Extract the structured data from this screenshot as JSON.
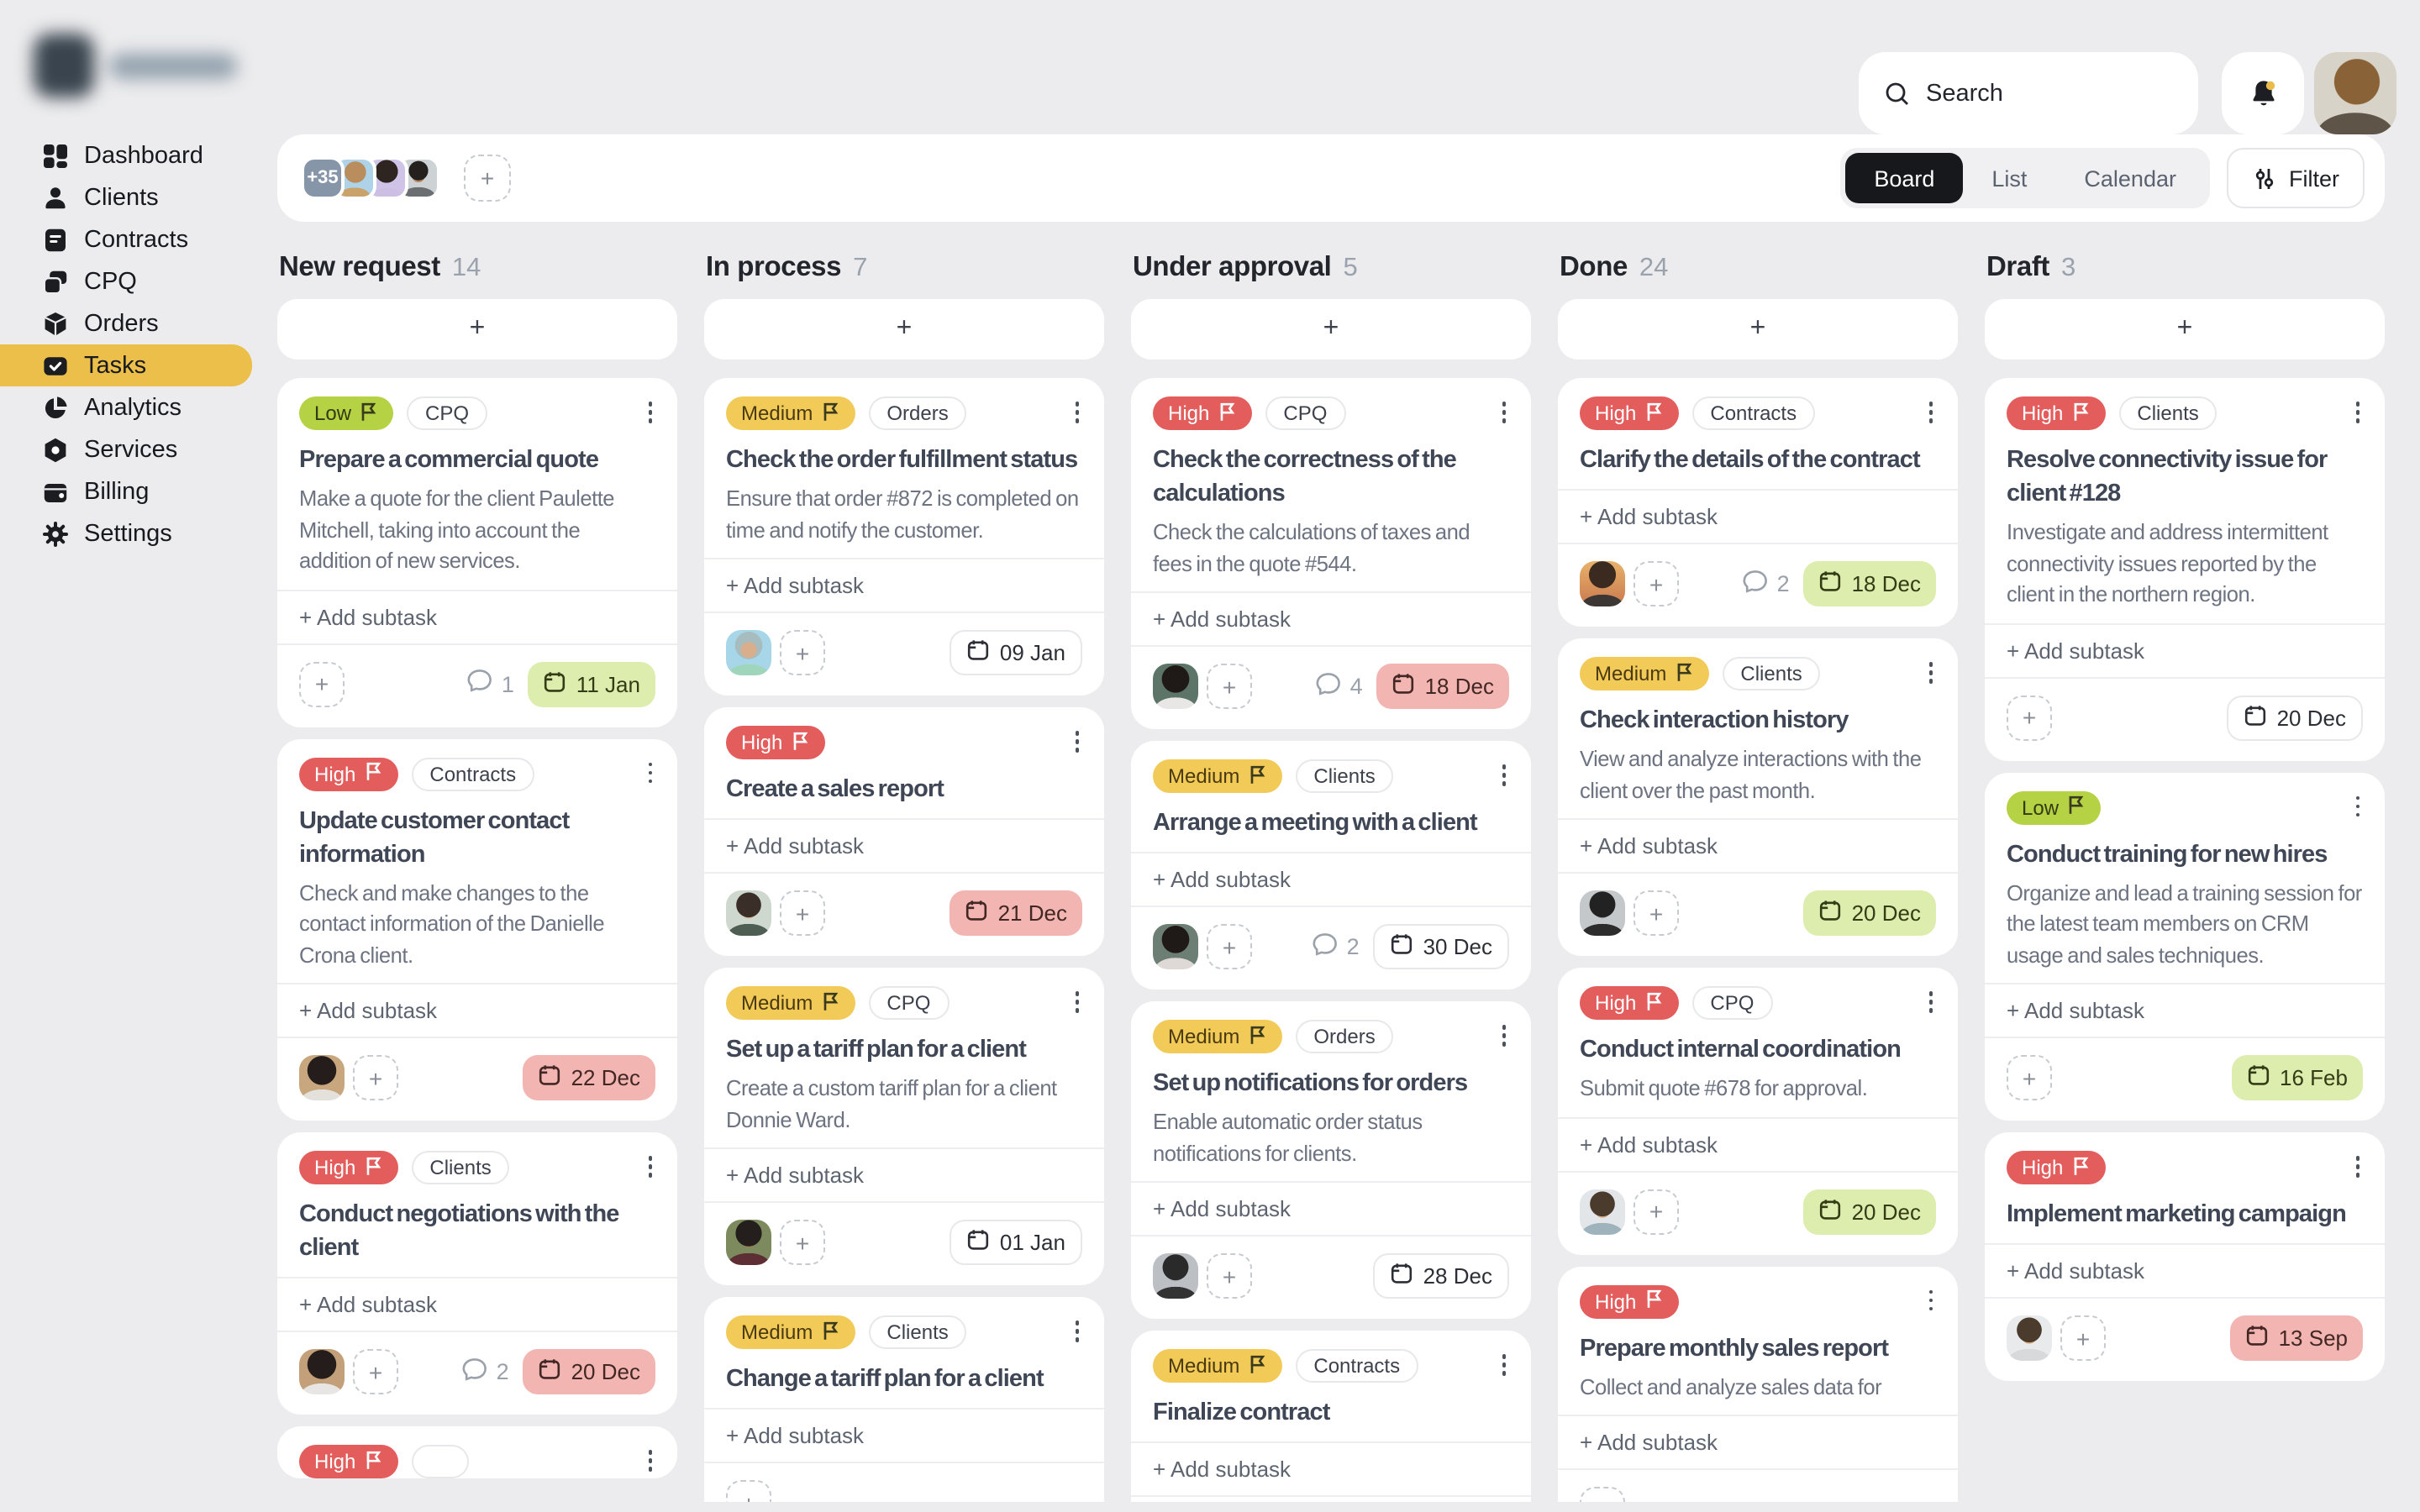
{
  "topbar": {
    "search_placeholder": "Search"
  },
  "sidebar": {
    "items": [
      {
        "label": "Dashboard",
        "icon": "dashboard"
      },
      {
        "label": "Clients",
        "icon": "clients"
      },
      {
        "label": "Contracts",
        "icon": "contracts"
      },
      {
        "label": "CPQ",
        "icon": "cpq"
      },
      {
        "label": "Orders",
        "icon": "orders"
      },
      {
        "label": "Tasks",
        "icon": "tasks",
        "active": true
      },
      {
        "label": "Analytics",
        "icon": "analytics"
      },
      {
        "label": "Services",
        "icon": "services"
      },
      {
        "label": "Billing",
        "icon": "billing"
      },
      {
        "label": "Settings",
        "icon": "settings"
      }
    ]
  },
  "toolbar": {
    "members_overflow": "+35",
    "member_avatars": [
      "member-1",
      "member-2",
      "member-3"
    ],
    "views": [
      "Board",
      "List",
      "Calendar"
    ],
    "active_view": "Board",
    "filter_label": "Filter"
  },
  "board": {
    "add_card_label": "+",
    "add_subtask_label": "+ Add subtask",
    "columns": [
      {
        "title": "New request",
        "count": "14",
        "cards": [
          {
            "priority": "Low",
            "category": "CPQ",
            "title": "Prepare a commercial quote",
            "description": "Make a quote for the client Paulette Mitchell, taking into account the addition of new services.",
            "comments": "1",
            "due": "11 Jan",
            "due_tone": "green",
            "assignee": null
          },
          {
            "priority": "High",
            "category": "Contracts",
            "title": "Update customer contact information",
            "description": "Check and make changes to the contact information of the Danielle Crona client.",
            "comments": null,
            "due": "22 Dec",
            "due_tone": "red",
            "assignee": "woman-afro"
          },
          {
            "priority": "High",
            "category": "Clients",
            "title": "Conduct negotiations with the client",
            "description": null,
            "comments": "2",
            "due": "20 Dec",
            "due_tone": "red",
            "assignee": "woman-afro-2"
          },
          {
            "priority": "High",
            "category": "",
            "title": null,
            "description": null,
            "comments": null,
            "due": null,
            "assignee": null
          }
        ]
      },
      {
        "title": "In process",
        "count": "7",
        "cards": [
          {
            "priority": "Medium",
            "category": "Orders",
            "title": "Check the order fulfillment status",
            "description": "Ensure that order #872 is completed on time and notify the customer.",
            "comments": null,
            "due": "09 Jan",
            "due_tone": "plain",
            "assignee": "girl-blue"
          },
          {
            "priority": "High",
            "category": null,
            "title": "Create a sales report",
            "description": null,
            "comments": null,
            "due": "21 Dec",
            "due_tone": "red",
            "assignee": "man-glasses"
          },
          {
            "priority": "Medium",
            "category": "CPQ",
            "title": "Set up a tariff plan for a client",
            "description": "Create a custom tariff plan for a client Donnie Ward.",
            "comments": null,
            "due": "01 Jan",
            "due_tone": "plain",
            "assignee": "man-outdoor"
          },
          {
            "priority": "Medium",
            "category": "Clients",
            "title": "Change a tariff plan for a client",
            "description": null,
            "comments": null,
            "due": null,
            "due_tone": null,
            "assignee": null
          }
        ]
      },
      {
        "title": "Under approval",
        "count": "5",
        "cards": [
          {
            "priority": "High",
            "category": "CPQ",
            "title": "Check the correctness of the calculations",
            "description": "Check the calculations of taxes and fees in the quote #544.",
            "comments": "4",
            "due": "18 Dec",
            "due_tone": "red",
            "assignee": "woman-dark"
          },
          {
            "priority": "Medium",
            "category": "Clients",
            "title": "Arrange a meeting with a client",
            "description": null,
            "comments": "2",
            "due": "30 Dec",
            "due_tone": "plain",
            "assignee": "woman-dark-2"
          },
          {
            "priority": "Medium",
            "category": "Orders",
            "title": "Set up notifications for orders",
            "description": "Enable automatic order status notifications for clients.",
            "comments": null,
            "due": "28 Dec",
            "due_tone": "plain",
            "assignee": "man-bw"
          },
          {
            "priority": "Medium",
            "category": "Contracts",
            "title": "Finalize contract",
            "description": null,
            "comments": null,
            "due": null,
            "due_tone": null,
            "assignee": null
          }
        ]
      },
      {
        "title": "Done",
        "count": "24",
        "cards": [
          {
            "priority": "High",
            "category": "Contracts",
            "title": "Clarify the details of the contract",
            "description": null,
            "comments": "2",
            "due": "18 Dec",
            "due_tone": "green",
            "assignee": "man-sunset"
          },
          {
            "priority": "Medium",
            "category": "Clients",
            "title": "Check interaction history",
            "description": "View and analyze interactions with the client over the past month.",
            "comments": null,
            "due": "20 Dec",
            "due_tone": "green",
            "assignee": "man-bw-2"
          },
          {
            "priority": "High",
            "category": "CPQ",
            "title": "Conduct internal coordination",
            "description": "Submit quote #678 for approval.",
            "comments": null,
            "due": "20 Dec",
            "due_tone": "green",
            "assignee": "man-glasses-2"
          },
          {
            "priority": "High",
            "category": null,
            "title": "Prepare monthly sales report",
            "description": "Collect and analyze sales data for",
            "comments": null,
            "due": null,
            "due_tone": null,
            "assignee": null
          }
        ]
      },
      {
        "title": "Draft",
        "count": "3",
        "cards": [
          {
            "priority": "High",
            "category": "Clients",
            "title": "Resolve connectivity issue for client #128",
            "description": "Investigate and address intermittent connectivity issues reported by the client in the northern region.",
            "comments": null,
            "due": "20 Dec",
            "due_tone": "plain",
            "assignee": null
          },
          {
            "priority": "Low",
            "category": null,
            "title": "Conduct training for new hires",
            "description": "Organize and lead a training session for the latest team members on CRM usage and sales techniques.",
            "comments": null,
            "due": "16 Feb",
            "due_tone": "green",
            "assignee": null
          },
          {
            "priority": "High",
            "category": null,
            "title": "Implement marketing campaign",
            "description": null,
            "comments": null,
            "due": "13 Sep",
            "due_tone": "red",
            "assignee": "man-glasses-3"
          }
        ]
      }
    ]
  }
}
